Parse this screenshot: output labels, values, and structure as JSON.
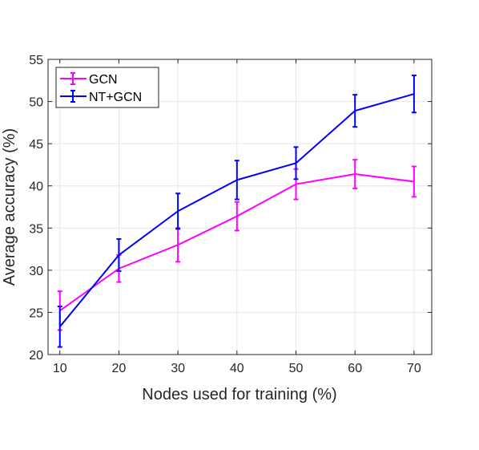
{
  "chart_data": {
    "type": "line",
    "xlabel": "Nodes used for training (%)",
    "ylabel": "Average accuracy (%)",
    "x": [
      10,
      20,
      30,
      40,
      50,
      60,
      70
    ],
    "xlim": [
      8,
      73
    ],
    "ylim": [
      20,
      55
    ],
    "xticks": [
      10,
      20,
      30,
      40,
      50,
      60,
      70
    ],
    "yticks": [
      20,
      25,
      30,
      35,
      40,
      45,
      50,
      55
    ],
    "grid": true,
    "legend_position": "top-left",
    "series": [
      {
        "name": "GCN",
        "color": "#ff00ff",
        "values": [
          25.2,
          30.2,
          33.0,
          36.4,
          40.2,
          41.4,
          40.5
        ],
        "error": [
          2.3,
          1.6,
          2.0,
          1.7,
          1.8,
          1.7,
          1.8
        ]
      },
      {
        "name": "NT+GCN",
        "color": "#0000ff",
        "values": [
          23.3,
          31.8,
          37.0,
          40.7,
          42.7,
          48.9,
          50.9
        ],
        "error": [
          2.4,
          1.9,
          2.1,
          2.3,
          1.9,
          1.9,
          2.2
        ]
      }
    ]
  }
}
